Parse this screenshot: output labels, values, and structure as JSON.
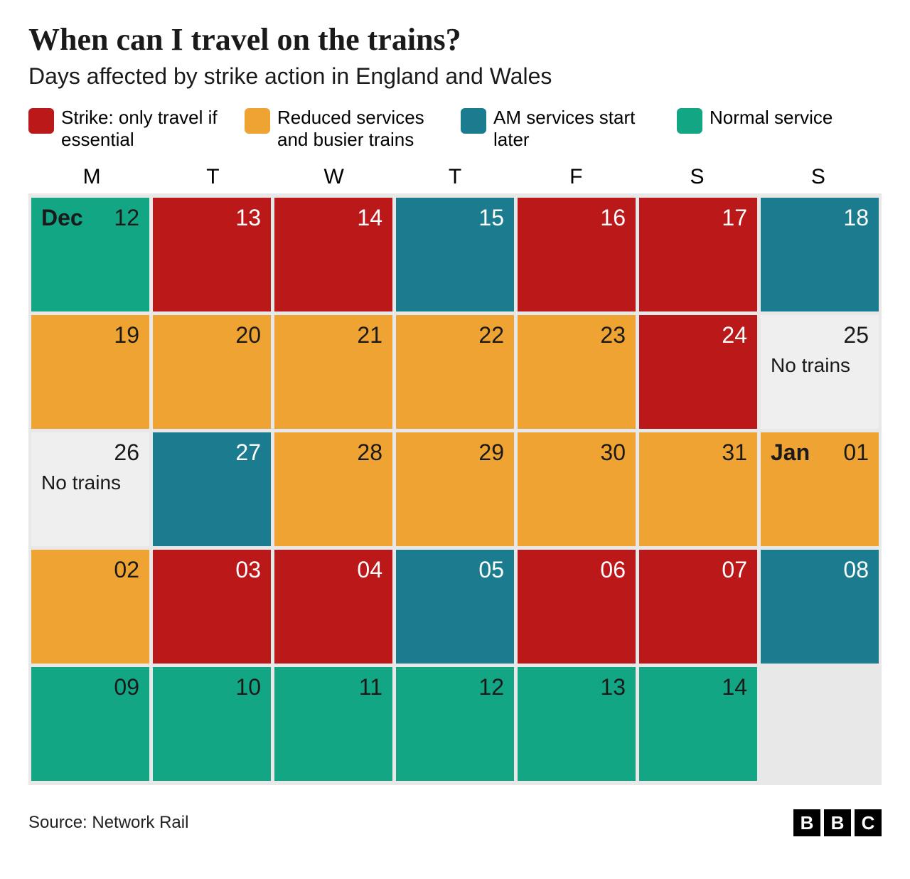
{
  "title": "When can I travel on the trains?",
  "subtitle": "Days affected by strike action in England and Wales",
  "colors": {
    "strike": "#bb1919",
    "reduced": "#efa332",
    "am_later": "#1b7b8f",
    "normal": "#12a684",
    "grid_bg": "#e8e8e8",
    "none_bg": "#efefef",
    "text_dark": "#1a1a1a",
    "text_light": "#ffffff"
  },
  "legend": [
    {
      "key": "strike",
      "label": "Strike: only travel if essential"
    },
    {
      "key": "reduced",
      "label": "Reduced services and busier trains"
    },
    {
      "key": "am_later",
      "label": "AM services start later"
    },
    {
      "key": "normal",
      "label": "Normal service"
    }
  ],
  "day_headers": [
    "M",
    "T",
    "W",
    "T",
    "F",
    "S",
    "S"
  ],
  "cells": [
    {
      "num": "12",
      "month": "Dec",
      "status": "normal"
    },
    {
      "num": "13",
      "status": "strike"
    },
    {
      "num": "14",
      "status": "strike"
    },
    {
      "num": "15",
      "status": "am_later"
    },
    {
      "num": "16",
      "status": "strike"
    },
    {
      "num": "17",
      "status": "strike"
    },
    {
      "num": "18",
      "status": "am_later"
    },
    {
      "num": "19",
      "status": "reduced"
    },
    {
      "num": "20",
      "status": "reduced"
    },
    {
      "num": "21",
      "status": "reduced"
    },
    {
      "num": "22",
      "status": "reduced"
    },
    {
      "num": "23",
      "status": "reduced"
    },
    {
      "num": "24",
      "status": "strike"
    },
    {
      "num": "25",
      "status": "none",
      "note": "No trains"
    },
    {
      "num": "26",
      "status": "none",
      "note": "No trains"
    },
    {
      "num": "27",
      "status": "am_later"
    },
    {
      "num": "28",
      "status": "reduced"
    },
    {
      "num": "29",
      "status": "reduced"
    },
    {
      "num": "30",
      "status": "reduced"
    },
    {
      "num": "31",
      "status": "reduced"
    },
    {
      "num": "01",
      "month": "Jan",
      "status": "reduced"
    },
    {
      "num": "02",
      "status": "reduced"
    },
    {
      "num": "03",
      "status": "strike"
    },
    {
      "num": "04",
      "status": "strike"
    },
    {
      "num": "05",
      "status": "am_later"
    },
    {
      "num": "06",
      "status": "strike"
    },
    {
      "num": "07",
      "status": "strike"
    },
    {
      "num": "08",
      "status": "am_later"
    },
    {
      "num": "09",
      "status": "normal"
    },
    {
      "num": "10",
      "status": "normal"
    },
    {
      "num": "11",
      "status": "normal"
    },
    {
      "num": "12",
      "status": "normal"
    },
    {
      "num": "13",
      "status": "normal"
    },
    {
      "num": "14",
      "status": "normal"
    },
    {
      "status": "empty"
    }
  ],
  "source_label": "Source: Network Rail",
  "logo_letters": [
    "B",
    "B",
    "C"
  ],
  "typography": {
    "title_fontsize": 44,
    "subtitle_fontsize": 32,
    "legend_fontsize": 26,
    "dayheader_fontsize": 30,
    "cellnum_fontsize": 32,
    "footer_fontsize": 24
  }
}
